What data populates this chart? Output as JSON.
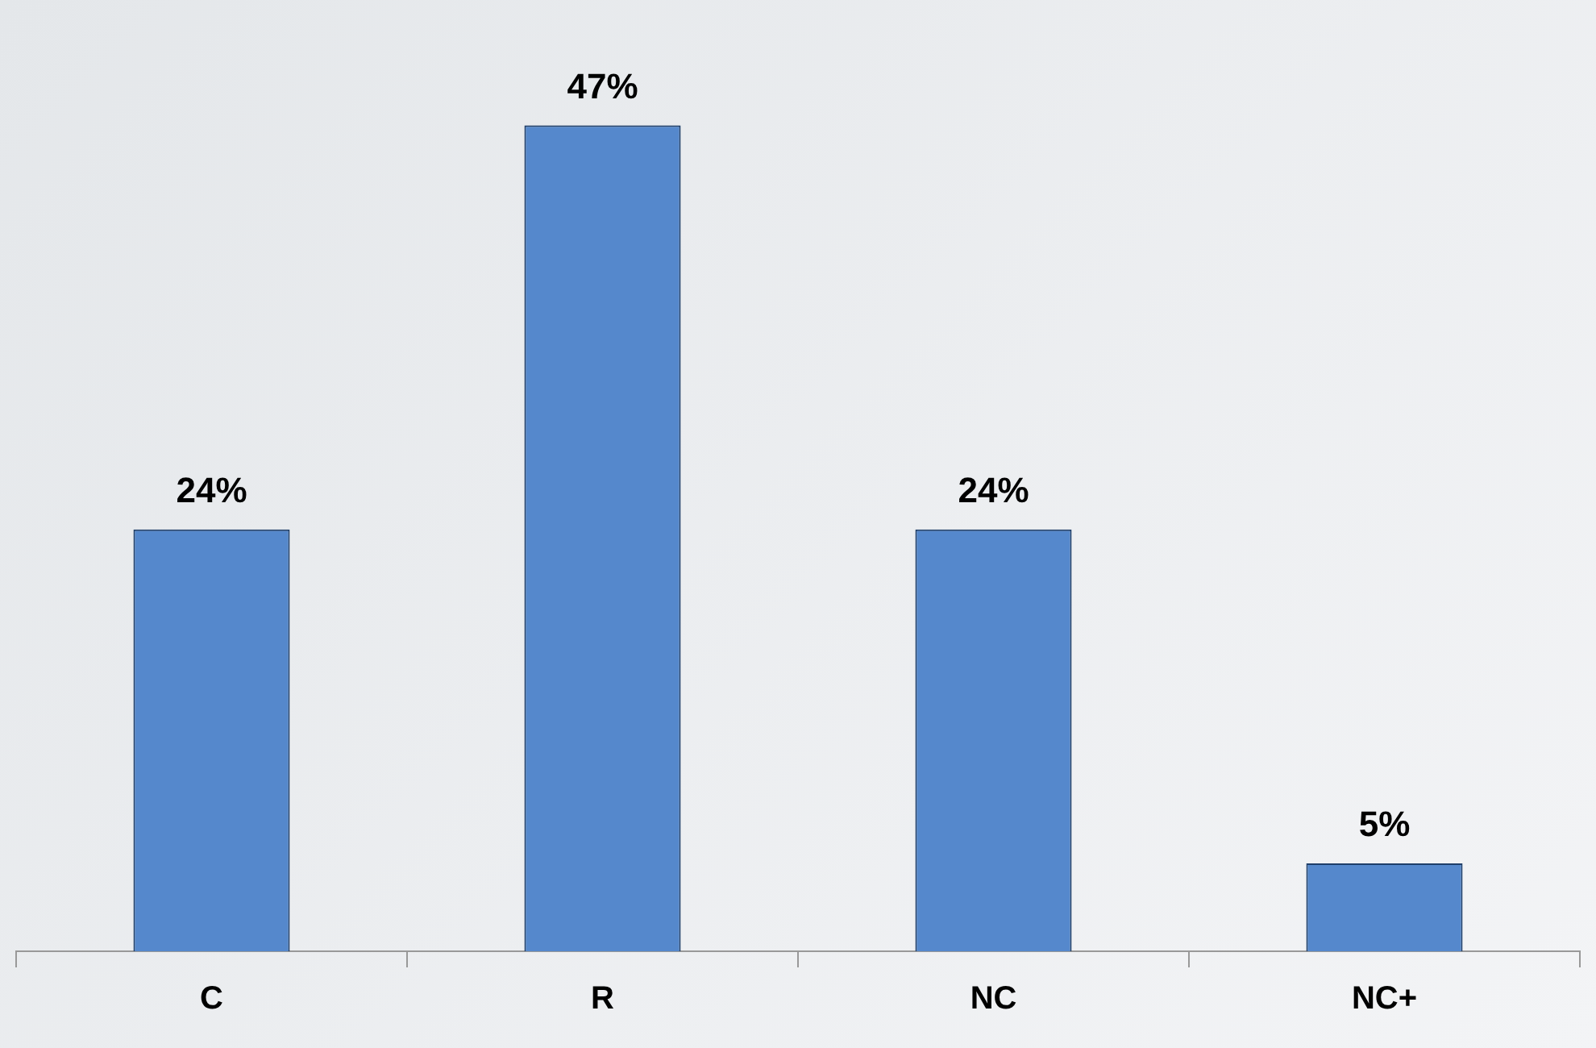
{
  "chart_data": {
    "type": "bar",
    "categories": [
      "C",
      "R",
      "NC",
      "NC+"
    ],
    "values": [
      24,
      47,
      24,
      5
    ],
    "color": "#5588cc",
    "value_labels": [
      "24%",
      "47%",
      "24%",
      "5%"
    ]
  }
}
